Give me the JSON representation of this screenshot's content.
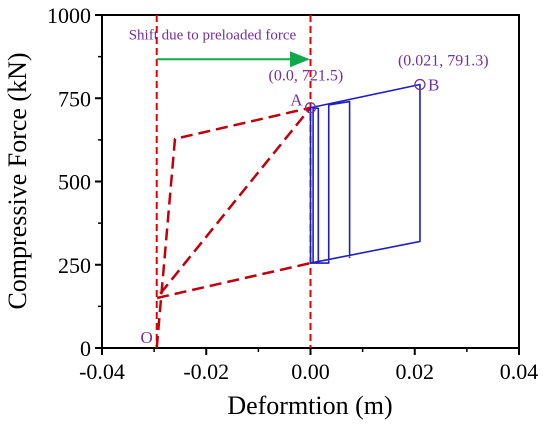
{
  "chart_data": {
    "type": "line",
    "xlabel": "Deformtion (m)",
    "ylabel": "Compressive Force (kN)",
    "xlim": [
      -0.04,
      0.04
    ],
    "ylim": [
      0,
      1000
    ],
    "x_ticks": [
      -0.04,
      -0.02,
      0.0,
      0.02,
      0.04
    ],
    "x_tick_labels": [
      "-0.04",
      "-0.02",
      "0.00",
      "0.02",
      "0.04"
    ],
    "y_ticks": [
      0,
      250,
      500,
      750,
      1000
    ],
    "y_tick_labels": [
      "0",
      "250",
      "500",
      "750",
      "1000"
    ],
    "grid": false,
    "series": [
      {
        "color": "#c0000b",
        "style": "dashed",
        "x": [
          -0.0295,
          -0.026,
          0.0,
          -0.0295,
          -0.0295,
          0.0
        ],
        "y": [
          0,
          628,
          721.5,
          150,
          150,
          255
        ]
      },
      {
        "color": "#1f1fc0",
        "style": "solid",
        "x": [
          0.0,
          0.0,
          0.021,
          0.021,
          0.0,
          0.0,
          0.0015,
          0.0015,
          0.0005,
          0.0005,
          0.0035,
          0.0035,
          0.0075,
          0.0075
        ],
        "y": [
          721.5,
          255,
          320,
          791.3,
          721.5,
          255,
          255,
          720,
          720,
          255,
          255,
          730,
          740,
          270
        ]
      }
    ],
    "reference_lines": [
      {
        "axis": "x",
        "value": -0.0295,
        "color": "#e80000",
        "style": "dashed"
      },
      {
        "axis": "x",
        "value": 0.0,
        "color": "#e80000",
        "style": "dashed"
      }
    ],
    "arrow": {
      "from": [
        -0.0295,
        867
      ],
      "to": [
        -0.0005,
        867
      ],
      "color": "#11a84a",
      "label": "Shift due to preloaded force",
      "label_color": "#7030a0"
    },
    "points": [
      {
        "label": "O",
        "x": -0.0295,
        "y": 0,
        "color": "#7030a0",
        "marker": false,
        "label_pos": "left"
      },
      {
        "label": "A",
        "x": 0.0,
        "y": 721.5,
        "color": "#7030a0",
        "marker": true,
        "label_pos": "left",
        "coord_label": "(0.0, 721.5)"
      },
      {
        "label": "B",
        "x": 0.021,
        "y": 791.3,
        "color": "#7030a0",
        "marker": true,
        "label_pos": "right",
        "coord_label": "(0.021, 791.3)"
      }
    ]
  }
}
